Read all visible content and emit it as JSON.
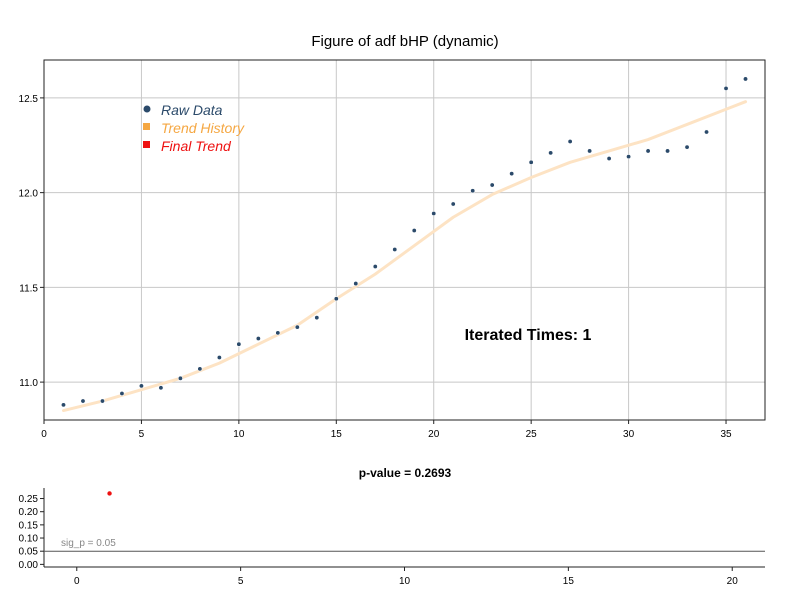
{
  "chart_data": [
    {
      "type": "scatter",
      "title": "Figure of adf bHP (dynamic)",
      "xlim": [
        0,
        37
      ],
      "ylim": [
        10.8,
        12.7
      ],
      "x_ticks": [
        "0",
        "5",
        "10",
        "15",
        "20",
        "25",
        "30",
        "35"
      ],
      "y_ticks": [
        "11.0",
        "11.5",
        "12.0",
        "12.5"
      ],
      "grid": true,
      "legend_position": "top-left",
      "legend": [
        "Raw Data",
        "Trend History",
        "Final Trend"
      ],
      "annotation": "Iterated Times: 1",
      "colors": {
        "raw": "#2b4a6a",
        "trend_history": "#f5a742",
        "trend_line": "#fde3c4",
        "final_trend": "#ee1111",
        "grid": "#c8c8c8"
      },
      "series": [
        {
          "name": "Raw Data",
          "x": [
            1,
            2,
            3,
            4,
            5,
            6,
            7,
            8,
            9,
            10,
            11,
            12,
            13,
            14,
            15,
            16,
            17,
            18,
            19,
            20,
            21,
            22,
            23,
            24,
            25,
            26,
            27,
            28,
            29,
            30,
            31,
            32,
            33,
            34,
            35,
            36
          ],
          "y": [
            10.88,
            10.9,
            10.9,
            10.94,
            10.98,
            10.97,
            11.02,
            11.07,
            11.13,
            11.2,
            11.23,
            11.26,
            11.29,
            11.34,
            11.44,
            11.52,
            11.61,
            11.7,
            11.8,
            11.89,
            11.94,
            12.01,
            12.04,
            12.1,
            12.16,
            12.21,
            12.27,
            12.22,
            12.18,
            12.19,
            12.22,
            12.22,
            12.24,
            12.32,
            12.55,
            12.6
          ]
        },
        {
          "name": "Trend History",
          "x": [
            1,
            3,
            5,
            7,
            9,
            11,
            13,
            15,
            17,
            19,
            21,
            23,
            25,
            27,
            29,
            31,
            33,
            35,
            36
          ],
          "y": [
            10.85,
            10.9,
            10.96,
            11.02,
            11.1,
            11.2,
            11.3,
            11.44,
            11.57,
            11.72,
            11.87,
            11.99,
            12.08,
            12.16,
            12.22,
            12.28,
            12.36,
            12.44,
            12.48
          ]
        }
      ]
    },
    {
      "type": "scatter",
      "title": "p-value = 0.2693",
      "xlim": [
        -1,
        21
      ],
      "ylim": [
        -0.01,
        0.29
      ],
      "x_ticks": [
        "0",
        "5",
        "10",
        "15",
        "20"
      ],
      "y_ticks": [
        "0.00",
        "0.05",
        "0.10",
        "0.15",
        "0.20",
        "0.25"
      ],
      "threshold": {
        "label": "sig_p = 0.05",
        "value": 0.05
      },
      "series": [
        {
          "x": [
            1
          ],
          "y": [
            0.2693
          ]
        }
      ]
    }
  ]
}
